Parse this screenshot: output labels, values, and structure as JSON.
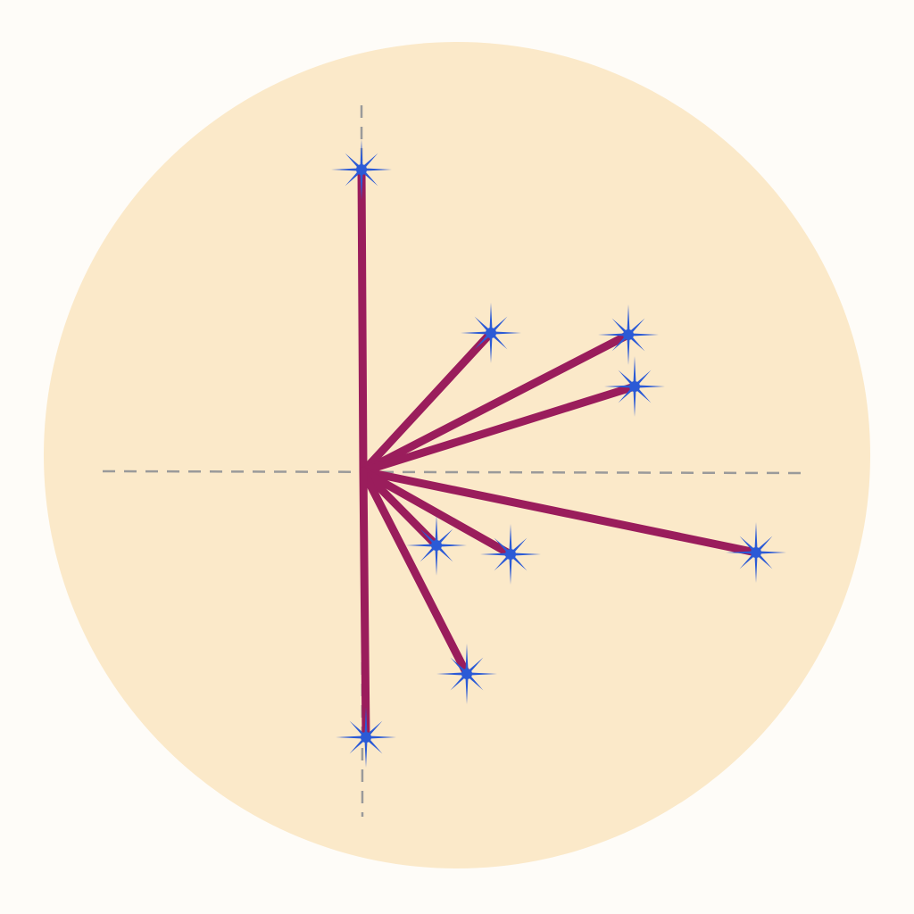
{
  "diagram": {
    "type": "vector-star-plot",
    "colors": {
      "background_disc": "#fbe9c9",
      "vector": "#9a1d5c",
      "marker": "#2b5ad6",
      "axis": "#9a9a9a"
    },
    "axes": {
      "style": "dashed",
      "horizontal": true,
      "vertical": true
    },
    "marker_icon": "eight-point-star-icon",
    "vectors": [
      {
        "x": -0.02,
        "y": 3.38
      },
      {
        "x": 1.43,
        "y": 1.55
      },
      {
        "x": 2.97,
        "y": 1.53
      },
      {
        "x": 3.04,
        "y": 0.95
      },
      {
        "x": 4.4,
        "y": -0.91
      },
      {
        "x": 1.65,
        "y": -0.93
      },
      {
        "x": 0.82,
        "y": -0.83
      },
      {
        "x": 1.16,
        "y": -2.27
      },
      {
        "x": 0.03,
        "y": -2.98
      }
    ]
  }
}
